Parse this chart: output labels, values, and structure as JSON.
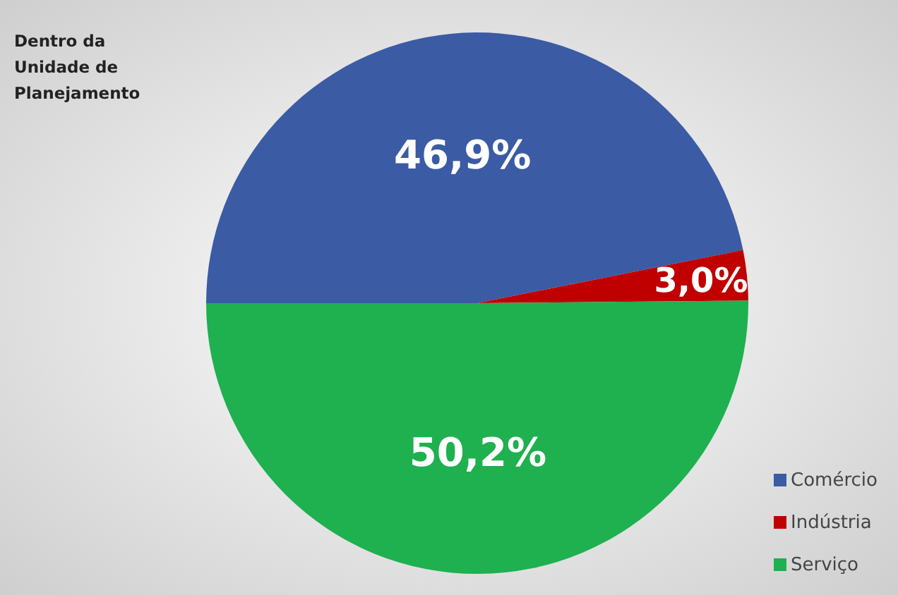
{
  "chart_data": {
    "type": "pie",
    "title": "Dentro da Unidade de Planejamento",
    "categories": [
      "Comércio",
      "Indústria",
      "Serviço"
    ],
    "values": [
      46.9,
      3.0,
      50.2
    ],
    "value_labels": [
      "46,9%",
      "3,0%",
      "50,2%"
    ],
    "colors": [
      "#3b5ba5",
      "#c00000",
      "#1fb04f"
    ],
    "legend": "bottom right"
  }
}
